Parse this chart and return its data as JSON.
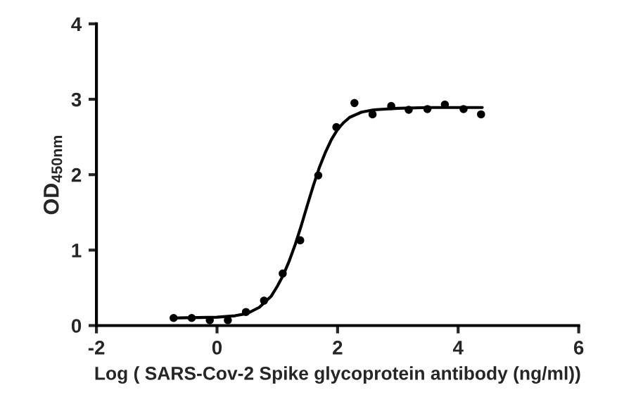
{
  "chart_data": {
    "type": "scatter",
    "xlabel": "Log ( SARS-Cov-2 Spike glycoprotein antibody (ng/ml))",
    "ylabel": "OD$_{450nm}$",
    "xlim": [
      -2,
      6
    ],
    "xticks": [
      -2,
      0,
      2,
      4,
      6
    ],
    "ylim": [
      0,
      4
    ],
    "yticks": [
      0,
      1,
      2,
      3,
      4
    ],
    "grid": false,
    "legend": false,
    "series": [
      {
        "color": "#000000",
        "marker": "circle",
        "x": [
          -0.72,
          -0.42,
          -0.12,
          0.18,
          0.48,
          0.78,
          1.09,
          1.38,
          1.68,
          1.98,
          2.28,
          2.58,
          2.89,
          3.18,
          3.49,
          3.78,
          4.09,
          4.38
        ],
        "values": [
          0.1,
          0.1,
          0.07,
          0.07,
          0.18,
          0.33,
          0.69,
          1.13,
          1.99,
          2.63,
          2.95,
          2.8,
          2.91,
          2.86,
          2.87,
          2.93,
          2.87,
          2.8
        ]
      },
      {
        "type": "line",
        "color": "#000000",
        "marker": "none",
        "line_style": "solid",
        "x": [
          -0.72,
          0,
          0.3,
          0.5,
          0.7,
          0.9,
          1.0,
          1.1,
          1.2,
          1.3,
          1.4,
          1.5,
          1.6,
          1.7,
          1.8,
          1.9,
          2.0,
          2.1,
          2.2,
          2.4,
          2.6,
          3.0,
          3.5,
          4.0,
          4.4
        ],
        "values": [
          0.1,
          0.11,
          0.13,
          0.16,
          0.24,
          0.39,
          0.52,
          0.67,
          0.86,
          1.08,
          1.33,
          1.6,
          1.86,
          2.1,
          2.3,
          2.47,
          2.6,
          2.69,
          2.76,
          2.83,
          2.86,
          2.88,
          2.89,
          2.89,
          2.89
        ]
      }
    ]
  }
}
